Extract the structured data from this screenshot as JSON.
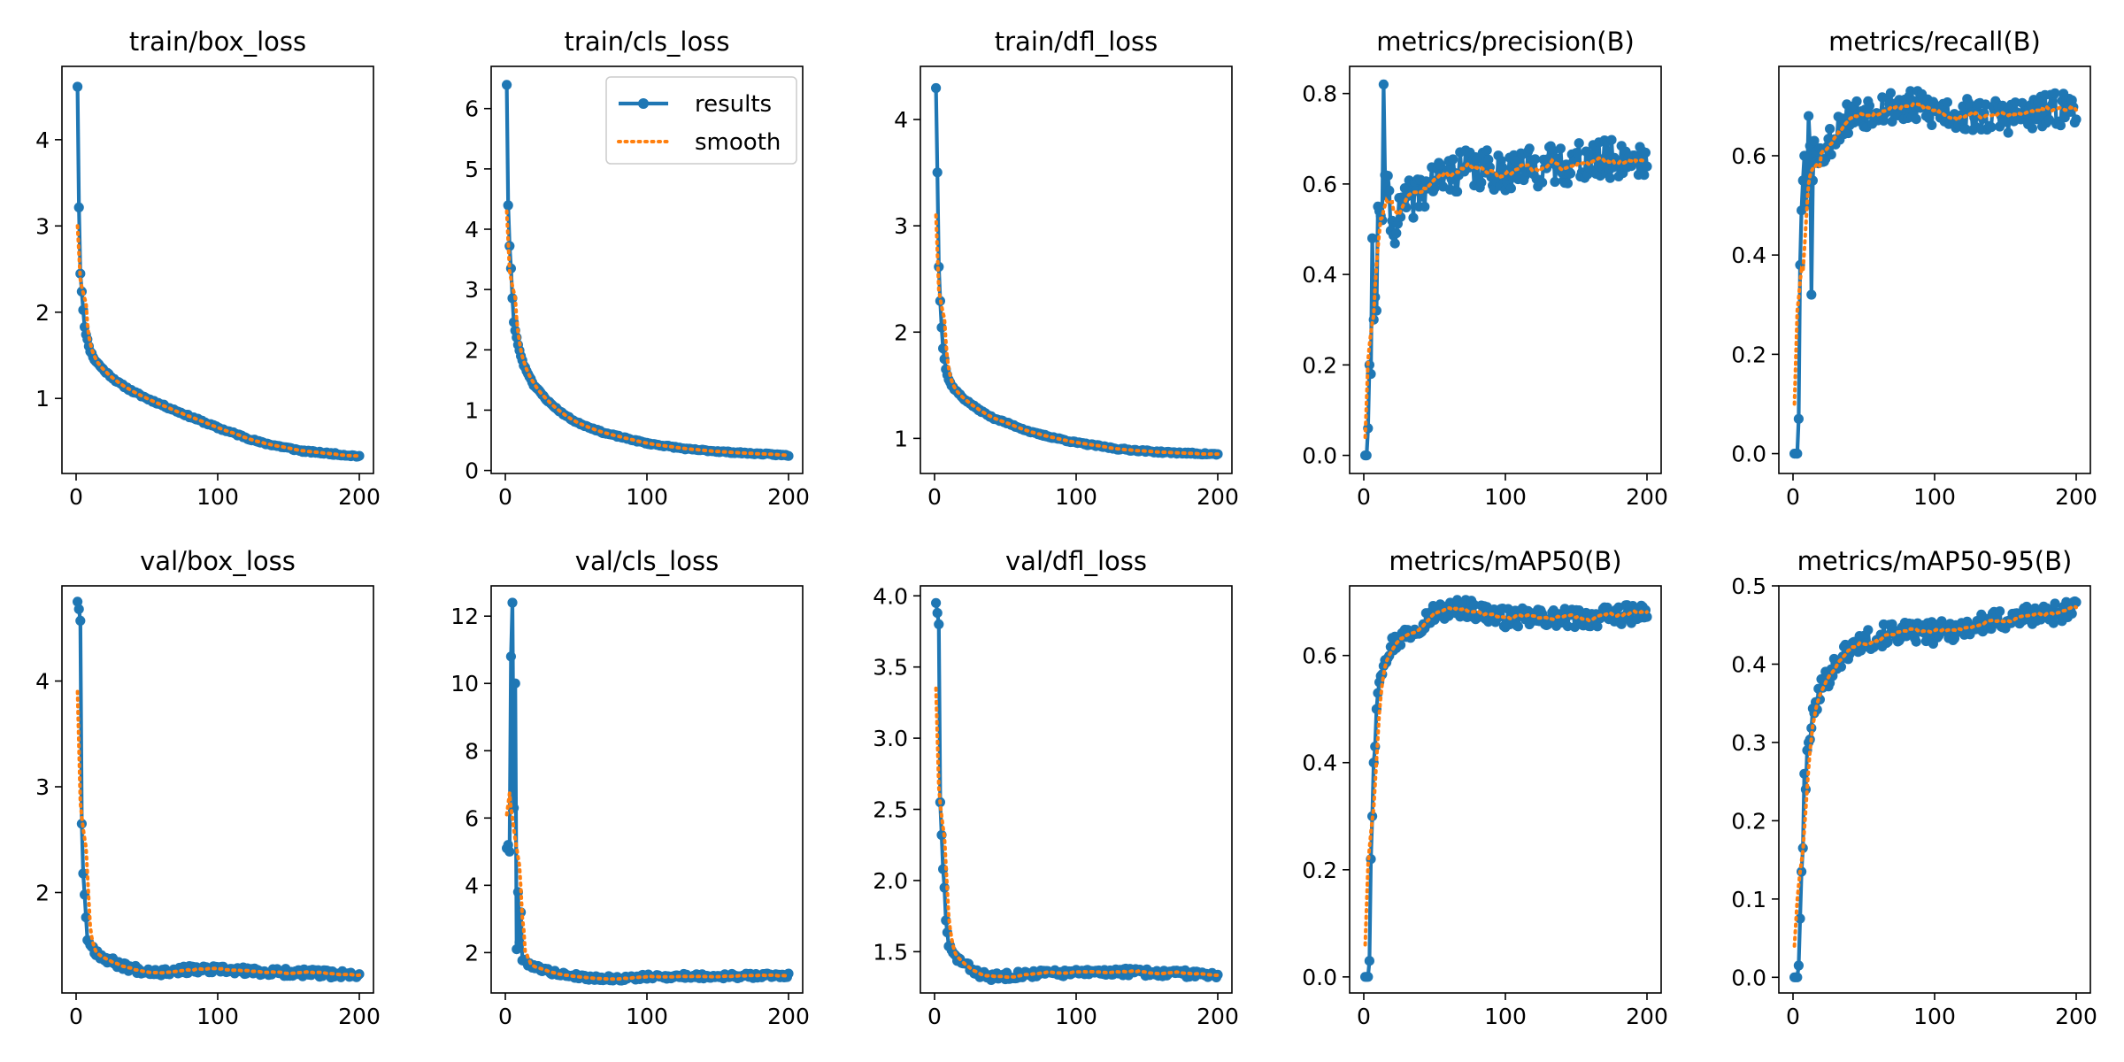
{
  "figure_title": "results.png",
  "colors": {
    "results": "#1f77b4",
    "smooth": "#ff7f0e",
    "axes": "#000000"
  },
  "legend": {
    "results_label": "results",
    "smooth_label": "smooth",
    "placement": "top-right of train/cls_loss"
  },
  "chart_data": [
    {
      "type": "line",
      "title": "train/box_loss",
      "xlim": [
        -10,
        210
      ],
      "ylim": [
        0.13,
        4.85
      ],
      "xticks": [
        0,
        100,
        200
      ],
      "yticks": [
        1,
        2,
        3,
        4
      ],
      "ytick_labels": [
        "1",
        "2",
        "3",
        "4"
      ],
      "anchors": [
        [
          1,
          4.62
        ],
        [
          2,
          3.22
        ],
        [
          3,
          2.45
        ],
        [
          4,
          2.25
        ],
        [
          5,
          2.02
        ],
        [
          6,
          1.82
        ],
        [
          8,
          1.68
        ],
        [
          10,
          1.55
        ],
        [
          13,
          1.45
        ],
        [
          20,
          1.32
        ],
        [
          30,
          1.18
        ],
        [
          40,
          1.08
        ],
        [
          50,
          1.0
        ],
        [
          70,
          0.86
        ],
        [
          100,
          0.66
        ],
        [
          130,
          0.49
        ],
        [
          160,
          0.39
        ],
        [
          200,
          0.33
        ]
      ],
      "noise": 0.012,
      "seed": 11,
      "smooth_start": 3.0
    },
    {
      "type": "line",
      "title": "train/cls_loss",
      "xlim": [
        -10,
        210
      ],
      "ylim": [
        -0.05,
        6.7
      ],
      "xticks": [
        0,
        100,
        200
      ],
      "yticks": [
        0,
        1,
        2,
        3,
        4,
        5,
        6
      ],
      "ytick_labels": [
        "0",
        "1",
        "2",
        "3",
        "4",
        "5",
        "6"
      ],
      "anchors": [
        [
          1,
          6.4
        ],
        [
          2,
          4.4
        ],
        [
          3,
          3.72
        ],
        [
          4,
          3.35
        ],
        [
          5,
          2.85
        ],
        [
          6,
          2.45
        ],
        [
          8,
          2.2
        ],
        [
          10,
          1.98
        ],
        [
          13,
          1.75
        ],
        [
          20,
          1.42
        ],
        [
          30,
          1.15
        ],
        [
          40,
          0.95
        ],
        [
          50,
          0.8
        ],
        [
          70,
          0.62
        ],
        [
          100,
          0.45
        ],
        [
          130,
          0.35
        ],
        [
          160,
          0.3
        ],
        [
          200,
          0.25
        ]
      ],
      "noise": 0.012,
      "seed": 23,
      "smooth_start": 4.3,
      "has_legend": true
    },
    {
      "type": "line",
      "title": "train/dfl_loss",
      "xlim": [
        -10,
        210
      ],
      "ylim": [
        0.67,
        4.5
      ],
      "xticks": [
        0,
        100,
        200
      ],
      "yticks": [
        1,
        2,
        3,
        4
      ],
      "ytick_labels": [
        "1",
        "2",
        "3",
        "4"
      ],
      "anchors": [
        [
          1,
          4.3
        ],
        [
          2,
          3.5
        ],
        [
          3,
          2.62
        ],
        [
          4,
          2.3
        ],
        [
          5,
          2.05
        ],
        [
          6,
          1.85
        ],
        [
          8,
          1.65
        ],
        [
          10,
          1.55
        ],
        [
          13,
          1.48
        ],
        [
          20,
          1.38
        ],
        [
          30,
          1.28
        ],
        [
          40,
          1.2
        ],
        [
          50,
          1.15
        ],
        [
          70,
          1.05
        ],
        [
          100,
          0.96
        ],
        [
          130,
          0.9
        ],
        [
          160,
          0.87
        ],
        [
          200,
          0.85
        ]
      ],
      "noise": 0.008,
      "seed": 37,
      "smooth_start": 3.1
    },
    {
      "type": "line",
      "title": "metrics/precision(B)",
      "xlim": [
        -10,
        210
      ],
      "ylim": [
        -0.04,
        0.86
      ],
      "xticks": [
        0,
        100,
        200
      ],
      "yticks": [
        0.0,
        0.2,
        0.4,
        0.6,
        0.8
      ],
      "ytick_labels": [
        "0.0",
        "0.2",
        "0.4",
        "0.6",
        "0.8"
      ],
      "anchors": [
        [
          1,
          0.0
        ],
        [
          2,
          0.0
        ],
        [
          3,
          0.06
        ],
        [
          4,
          0.2
        ],
        [
          5,
          0.18
        ],
        [
          6,
          0.48
        ],
        [
          7,
          0.3
        ],
        [
          8,
          0.35
        ],
        [
          9,
          0.32
        ],
        [
          10,
          0.55
        ],
        [
          13,
          0.52
        ],
        [
          14,
          0.82
        ],
        [
          15,
          0.62
        ],
        [
          18,
          0.55
        ],
        [
          20,
          0.5
        ],
        [
          25,
          0.53
        ],
        [
          30,
          0.56
        ],
        [
          40,
          0.58
        ],
        [
          50,
          0.61
        ],
        [
          70,
          0.63
        ],
        [
          100,
          0.63
        ],
        [
          130,
          0.64
        ],
        [
          160,
          0.65
        ],
        [
          200,
          0.66
        ]
      ],
      "noise": 0.045,
      "seed": 41,
      "noise_from": 16,
      "smooth_start": 0.04
    },
    {
      "type": "line",
      "title": "metrics/recall(B)",
      "xlim": [
        -10,
        210
      ],
      "ylim": [
        -0.04,
        0.78
      ],
      "xticks": [
        0,
        100,
        200
      ],
      "yticks": [
        0.0,
        0.2,
        0.4,
        0.6
      ],
      "ytick_labels": [
        "0.0",
        "0.2",
        "0.4",
        "0.6"
      ],
      "anchors": [
        [
          1,
          0.0
        ],
        [
          2,
          0.0
        ],
        [
          3,
          0.0
        ],
        [
          4,
          0.07
        ],
        [
          5,
          0.38
        ],
        [
          6,
          0.49
        ],
        [
          7,
          0.55
        ],
        [
          8,
          0.6
        ],
        [
          9,
          0.5
        ],
        [
          10,
          0.55
        ],
        [
          11,
          0.68
        ],
        [
          12,
          0.62
        ],
        [
          13,
          0.32
        ],
        [
          14,
          0.55
        ],
        [
          15,
          0.63
        ],
        [
          20,
          0.6
        ],
        [
          30,
          0.65
        ],
        [
          40,
          0.68
        ],
        [
          60,
          0.7
        ],
        [
          80,
          0.7
        ],
        [
          100,
          0.69
        ],
        [
          130,
          0.68
        ],
        [
          160,
          0.68
        ],
        [
          200,
          0.7
        ]
      ],
      "noise": 0.035,
      "seed": 53,
      "noise_from": 16,
      "smooth_start": 0.1
    },
    {
      "type": "line",
      "title": "val/box_loss",
      "xlim": [
        -10,
        210
      ],
      "ylim": [
        1.05,
        4.9
      ],
      "xticks": [
        0,
        100,
        200
      ],
      "yticks": [
        2,
        3,
        4
      ],
      "ytick_labels": [
        "2",
        "3",
        "4"
      ],
      "anchors": [
        [
          1,
          4.75
        ],
        [
          2,
          4.68
        ],
        [
          3,
          4.57
        ],
        [
          4,
          2.65
        ],
        [
          5,
          2.18
        ],
        [
          6,
          1.98
        ],
        [
          8,
          1.55
        ],
        [
          10,
          1.52
        ],
        [
          13,
          1.45
        ],
        [
          20,
          1.38
        ],
        [
          30,
          1.32
        ],
        [
          40,
          1.28
        ],
        [
          50,
          1.26
        ],
        [
          60,
          1.25
        ],
        [
          80,
          1.27
        ],
        [
          100,
          1.27
        ],
        [
          130,
          1.25
        ],
        [
          160,
          1.24
        ],
        [
          200,
          1.22
        ]
      ],
      "noise": 0.035,
      "seed": 67,
      "noise_from": 10,
      "smooth_start": 3.9
    },
    {
      "type": "line",
      "title": "val/cls_loss",
      "xlim": [
        -10,
        210
      ],
      "ylim": [
        0.8,
        12.9
      ],
      "xticks": [
        0,
        100,
        200
      ],
      "yticks": [
        2,
        4,
        6,
        8,
        10,
        12
      ],
      "ytick_labels": [
        "2",
        "4",
        "6",
        "8",
        "10",
        "12"
      ],
      "anchors": [
        [
          1,
          5.1
        ],
        [
          2,
          5.2
        ],
        [
          3,
          5.0
        ],
        [
          4,
          10.8
        ],
        [
          5,
          12.4
        ],
        [
          6,
          6.3
        ],
        [
          7,
          10.0
        ],
        [
          8,
          2.1
        ],
        [
          9,
          3.8
        ],
        [
          10,
          2.3
        ],
        [
          11,
          3.2
        ],
        [
          12,
          1.8
        ],
        [
          15,
          1.7
        ],
        [
          20,
          1.6
        ],
        [
          30,
          1.45
        ],
        [
          40,
          1.35
        ],
        [
          60,
          1.25
        ],
        [
          80,
          1.22
        ],
        [
          100,
          1.28
        ],
        [
          130,
          1.3
        ],
        [
          160,
          1.3
        ],
        [
          200,
          1.33
        ]
      ],
      "noise": 0.07,
      "seed": 79,
      "noise_from": 12,
      "smooth_start": 6.1
    },
    {
      "type": "line",
      "title": "val/dfl_loss",
      "xlim": [
        -10,
        210
      ],
      "ylim": [
        1.21,
        4.07
      ],
      "xticks": [
        0,
        100,
        200
      ],
      "yticks": [
        1.5,
        2.0,
        2.5,
        3.0,
        3.5,
        4.0
      ],
      "ytick_labels": [
        "1.5",
        "2.0",
        "2.5",
        "3.0",
        "3.5",
        "4.0"
      ],
      "anchors": [
        [
          1,
          3.95
        ],
        [
          2,
          3.88
        ],
        [
          3,
          3.8
        ],
        [
          4,
          2.55
        ],
        [
          5,
          2.32
        ],
        [
          6,
          2.08
        ],
        [
          7,
          1.95
        ],
        [
          8,
          1.72
        ],
        [
          10,
          1.55
        ],
        [
          13,
          1.48
        ],
        [
          20,
          1.42
        ],
        [
          30,
          1.35
        ],
        [
          40,
          1.32
        ],
        [
          50,
          1.33
        ],
        [
          60,
          1.34
        ],
        [
          80,
          1.35
        ],
        [
          100,
          1.35
        ],
        [
          130,
          1.36
        ],
        [
          160,
          1.35
        ],
        [
          200,
          1.34
        ]
      ],
      "noise": 0.025,
      "seed": 83,
      "noise_from": 10,
      "smooth_start": 3.35
    },
    {
      "type": "line",
      "title": "metrics/mAP50(B)",
      "xlim": [
        -10,
        210
      ],
      "ylim": [
        -0.03,
        0.73
      ],
      "xticks": [
        0,
        100,
        200
      ],
      "yticks": [
        0.0,
        0.2,
        0.4,
        0.6
      ],
      "ytick_labels": [
        "0.0",
        "0.2",
        "0.4",
        "0.6"
      ],
      "anchors": [
        [
          1,
          0.0
        ],
        [
          2,
          0.0
        ],
        [
          3,
          0.0
        ],
        [
          4,
          0.03
        ],
        [
          5,
          0.22
        ],
        [
          6,
          0.3
        ],
        [
          7,
          0.4
        ],
        [
          8,
          0.43
        ],
        [
          9,
          0.5
        ],
        [
          10,
          0.53
        ],
        [
          12,
          0.57
        ],
        [
          15,
          0.6
        ],
        [
          20,
          0.62
        ],
        [
          30,
          0.64
        ],
        [
          40,
          0.66
        ],
        [
          50,
          0.68
        ],
        [
          70,
          0.69
        ],
        [
          100,
          0.67
        ],
        [
          130,
          0.67
        ],
        [
          160,
          0.67
        ],
        [
          200,
          0.68
        ]
      ],
      "noise": 0.018,
      "seed": 97,
      "noise_from": 12,
      "smooth_start": 0.06
    },
    {
      "type": "line",
      "title": "metrics/mAP50-95(B)",
      "xlim": [
        -10,
        210
      ],
      "ylim": [
        -0.02,
        0.5
      ],
      "xticks": [
        0,
        100,
        200
      ],
      "yticks": [
        0.0,
        0.1,
        0.2,
        0.3,
        0.4,
        0.5
      ],
      "ytick_labels": [
        "0.0",
        "0.1",
        "0.2",
        "0.3",
        "0.4",
        "0.5"
      ],
      "anchors": [
        [
          1,
          0.0
        ],
        [
          2,
          0.0
        ],
        [
          3,
          0.0
        ],
        [
          4,
          0.015
        ],
        [
          5,
          0.075
        ],
        [
          6,
          0.135
        ],
        [
          7,
          0.165
        ],
        [
          8,
          0.26
        ],
        [
          9,
          0.24
        ],
        [
          10,
          0.29
        ],
        [
          12,
          0.31
        ],
        [
          15,
          0.34
        ],
        [
          20,
          0.37
        ],
        [
          30,
          0.4
        ],
        [
          40,
          0.42
        ],
        [
          50,
          0.43
        ],
        [
          70,
          0.44
        ],
        [
          100,
          0.44
        ],
        [
          130,
          0.45
        ],
        [
          160,
          0.46
        ],
        [
          200,
          0.47
        ]
      ],
      "noise": 0.014,
      "seed": 101,
      "noise_from": 12,
      "smooth_start": 0.04
    }
  ]
}
